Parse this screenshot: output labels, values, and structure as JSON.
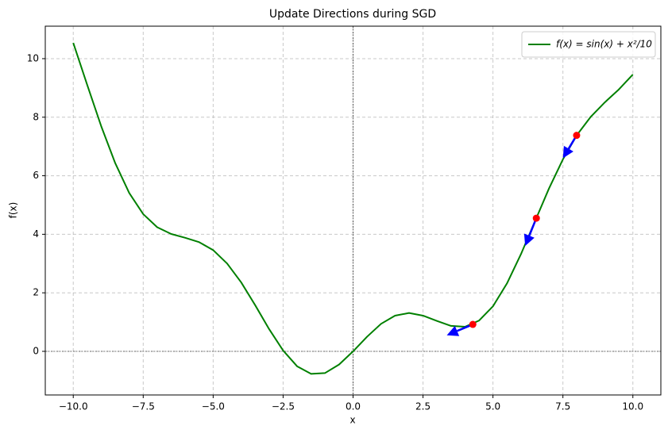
{
  "chart_data": {
    "type": "line",
    "title": "Update Directions during SGD",
    "xlabel": "x",
    "ylabel": "f(x)",
    "x": [
      -10,
      -9.5,
      -9,
      -8.5,
      -8,
      -7.5,
      -7,
      -6.5,
      -6,
      -5.5,
      -5,
      -4.5,
      -4,
      -3.5,
      -3,
      -2.5,
      -2,
      -1.5,
      -1,
      -0.5,
      0,
      0.5,
      1,
      1.5,
      2,
      2.5,
      3,
      3.5,
      4,
      4.5,
      5,
      5.5,
      6,
      6.5,
      7,
      7.5,
      8,
      8.5,
      9,
      9.5,
      10
    ],
    "series": [
      {
        "name": "f(x) = sin(x) + x²/10",
        "color": "#008000",
        "values": [
          10.54,
          9.1,
          7.69,
          6.43,
          5.41,
          4.69,
          4.24,
          4.01,
          3.88,
          3.73,
          3.46,
          3.0,
          2.36,
          1.58,
          0.76,
          0.03,
          -0.51,
          -0.77,
          -0.74,
          -0.45,
          0,
          0.5,
          0.94,
          1.22,
          1.31,
          1.22,
          1.04,
          0.87,
          0.84,
          1.05,
          1.54,
          2.32,
          3.32,
          4.44,
          5.56,
          6.56,
          7.39,
          8.02,
          8.51,
          8.95,
          9.46
        ]
      }
    ],
    "points": {
      "color": "#ff0000",
      "x": [
        4.28,
        6.55,
        7.99
      ],
      "y": [
        0.92,
        4.55,
        7.38
      ]
    },
    "arrows": {
      "color": "#0000ff",
      "dx": [
        -0.93,
        -0.4,
        -0.49
      ],
      "dy": [
        -0.37,
        -0.95,
        -0.78
      ]
    },
    "hline": 0,
    "vline": 0,
    "xlim": [
      -11,
      11
    ],
    "ylim": [
      -1.49,
      11.11
    ],
    "xticks": [
      {
        "value": -10,
        "label": "−10.0"
      },
      {
        "value": -7.5,
        "label": "−7.5"
      },
      {
        "value": -5,
        "label": "−5.0"
      },
      {
        "value": -2.5,
        "label": "−2.5"
      },
      {
        "value": 0,
        "label": "0.0"
      },
      {
        "value": 2.5,
        "label": "2.5"
      },
      {
        "value": 5,
        "label": "5.0"
      },
      {
        "value": 7.5,
        "label": "7.5"
      },
      {
        "value": 10,
        "label": "10.0"
      }
    ],
    "yticks": [
      0,
      2,
      4,
      6,
      8,
      10
    ],
    "grid": true,
    "legend": "upper right"
  }
}
